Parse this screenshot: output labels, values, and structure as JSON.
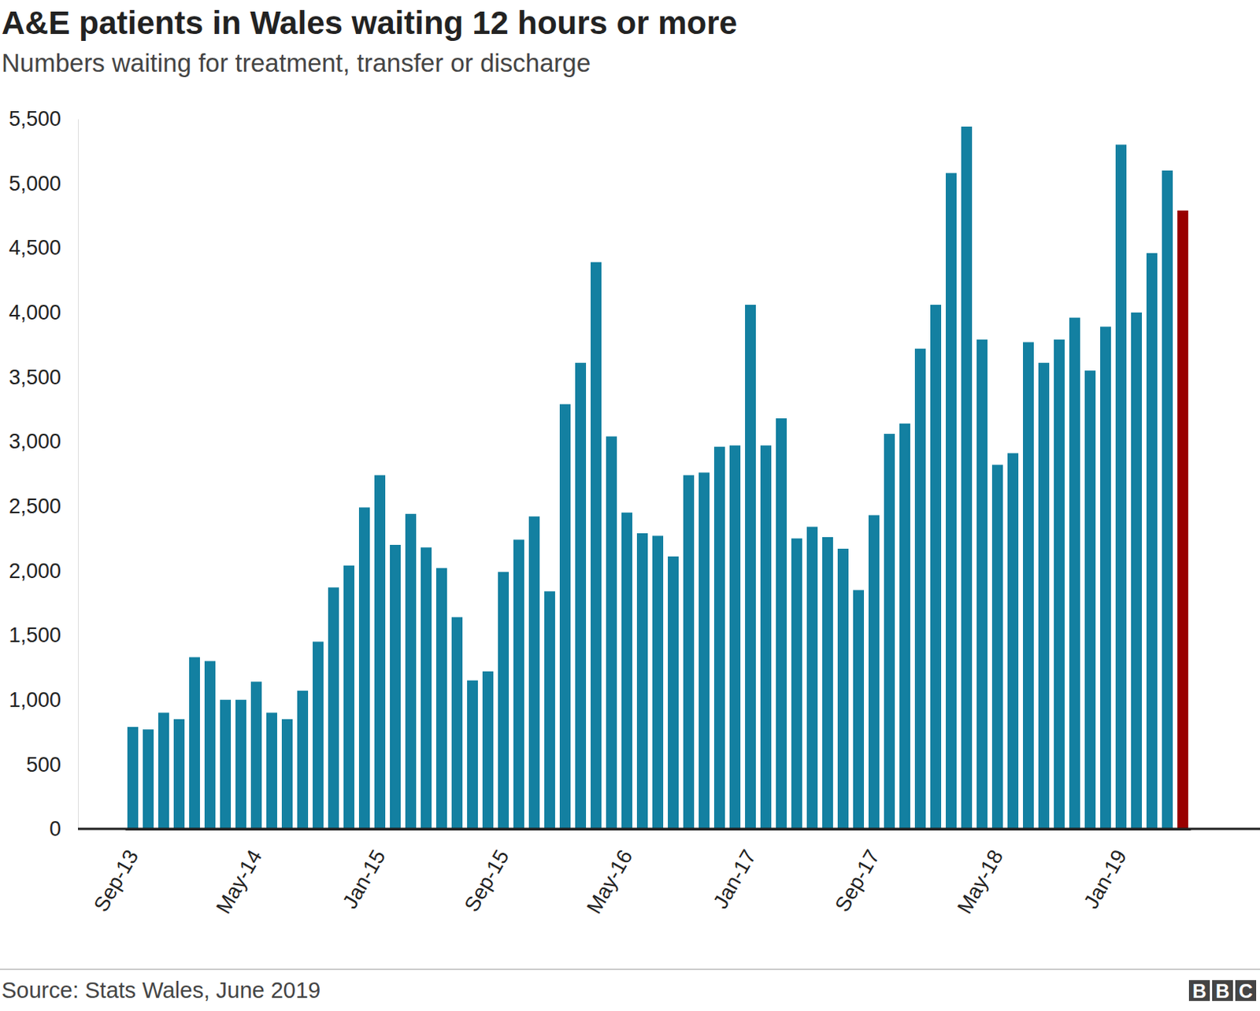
{
  "chart_data": {
    "type": "bar",
    "title": "A&E patients in Wales waiting 12 hours or more",
    "subtitle": "Numbers waiting for treatment, transfer or discharge",
    "source": "Source: Stats Wales, June 2019",
    "logo": "BBC",
    "categories": [
      "Sep-13",
      null,
      null,
      null,
      null,
      null,
      null,
      null,
      "May-14",
      null,
      null,
      null,
      null,
      null,
      null,
      null,
      "Jan-15",
      null,
      null,
      null,
      null,
      null,
      null,
      null,
      "Sep-15",
      null,
      null,
      null,
      null,
      null,
      null,
      null,
      "May-16",
      null,
      null,
      null,
      null,
      null,
      null,
      null,
      "Jan-17",
      null,
      null,
      null,
      null,
      null,
      null,
      null,
      "Sep-17",
      null,
      null,
      null,
      null,
      null,
      null,
      null,
      "May-18",
      null,
      null,
      null,
      null,
      null,
      null,
      null,
      "Jan-19",
      null,
      null,
      null,
      null
    ],
    "values": [
      790,
      770,
      900,
      850,
      1330,
      1300,
      1000,
      1000,
      1140,
      900,
      850,
      1070,
      1450,
      1870,
      2040,
      2490,
      2740,
      2200,
      2440,
      2180,
      2020,
      1640,
      1150,
      1220,
      1990,
      2240,
      2420,
      1840,
      3290,
      3610,
      4390,
      3040,
      2450,
      2290,
      2270,
      2110,
      2740,
      2760,
      2960,
      2970,
      4060,
      2970,
      3180,
      2250,
      2340,
      2260,
      2170,
      1850,
      2430,
      3060,
      3140,
      3720,
      4060,
      5080,
      5440,
      3790,
      2820,
      2910,
      3770,
      3610,
      3790,
      3960,
      3550,
      3890,
      5300,
      4000,
      4460,
      5100,
      4790
    ],
    "colors": [
      "#1380a1",
      "#1380a1",
      "#1380a1",
      "#1380a1",
      "#1380a1",
      "#1380a1",
      "#1380a1",
      "#1380a1",
      "#1380a1",
      "#1380a1",
      "#1380a1",
      "#1380a1",
      "#1380a1",
      "#1380a1",
      "#1380a1",
      "#1380a1",
      "#1380a1",
      "#1380a1",
      "#1380a1",
      "#1380a1",
      "#1380a1",
      "#1380a1",
      "#1380a1",
      "#1380a1",
      "#1380a1",
      "#1380a1",
      "#1380a1",
      "#1380a1",
      "#1380a1",
      "#1380a1",
      "#1380a1",
      "#1380a1",
      "#1380a1",
      "#1380a1",
      "#1380a1",
      "#1380a1",
      "#1380a1",
      "#1380a1",
      "#1380a1",
      "#1380a1",
      "#1380a1",
      "#1380a1",
      "#1380a1",
      "#1380a1",
      "#1380a1",
      "#1380a1",
      "#1380a1",
      "#1380a1",
      "#1380a1",
      "#1380a1",
      "#1380a1",
      "#1380a1",
      "#1380a1",
      "#1380a1",
      "#1380a1",
      "#1380a1",
      "#1380a1",
      "#1380a1",
      "#1380a1",
      "#1380a1",
      "#1380a1",
      "#1380a1",
      "#1380a1",
      "#1380a1",
      "#1380a1",
      "#1380a1",
      "#1380a1",
      "#1380a1",
      "#990000"
    ],
    "ylim": [
      0,
      5500
    ],
    "yticks": [
      0,
      500,
      {
        "value": 1000,
        "label": "1,000"
      },
      {
        "value": 1500,
        "label": "1,500"
      },
      {
        "value": 2000,
        "label": "2,000"
      },
      {
        "value": 2500,
        "label": "2,500"
      },
      {
        "value": 3000,
        "label": "3,000"
      },
      {
        "value": 3500,
        "label": "3,500"
      },
      {
        "value": 4000,
        "label": "4,000"
      },
      {
        "value": 4500,
        "label": "4,500"
      },
      {
        "value": 5000,
        "label": "5,000"
      },
      {
        "value": 5500,
        "label": "5,500"
      }
    ],
    "grid": false,
    "data_labels": false
  }
}
